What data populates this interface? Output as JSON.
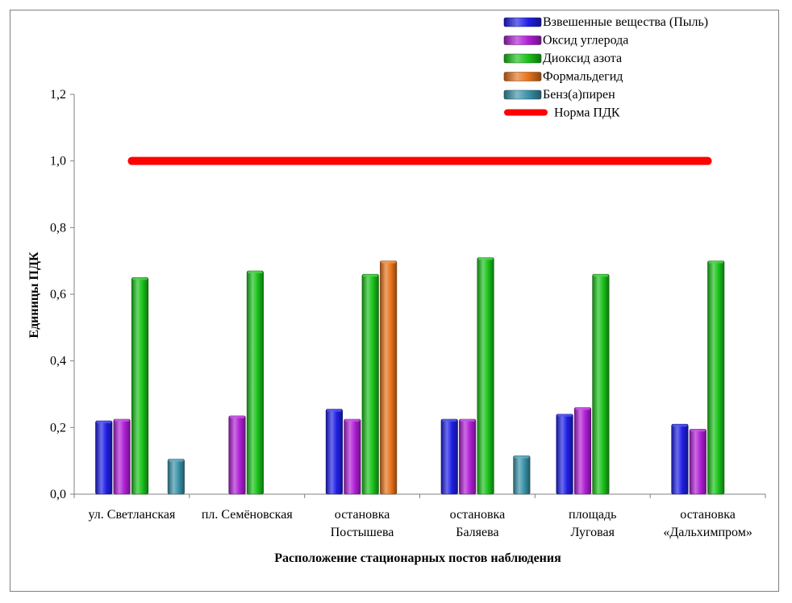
{
  "chart_data": {
    "type": "bar",
    "title": "",
    "xlabel": "Расположение стационарных постов наблюдения",
    "ylabel": "Единицы ПДК",
    "ylim": [
      0,
      1.2
    ],
    "yticks": [
      "0,0",
      "0,2",
      "0,4",
      "0,6",
      "0,8",
      "1,0",
      "1,2"
    ],
    "grid": false,
    "legend_position": "top-right",
    "categories": [
      [
        "ул. Светланская"
      ],
      [
        "пл. Семёновская"
      ],
      [
        "остановка",
        "Постышева"
      ],
      [
        "остановка",
        "Баляева"
      ],
      [
        "площадь",
        "Луговая"
      ],
      [
        "остановка",
        "«Дальхимпром»"
      ]
    ],
    "series": [
      {
        "name": "Взвешенные вещества (Пыль)",
        "color": "#1f1fe6",
        "values": [
          0.22,
          null,
          0.255,
          0.225,
          0.24,
          0.21
        ]
      },
      {
        "name": "Оксид углерода",
        "color": "#b01fd6",
        "values": [
          0.225,
          0.235,
          0.225,
          0.225,
          0.26,
          0.195
        ]
      },
      {
        "name": "Диоксид азота",
        "color": "#19c219",
        "values": [
          0.65,
          0.67,
          0.66,
          0.71,
          0.66,
          0.7
        ]
      },
      {
        "name": "Формальдегид",
        "color": "#e8731a",
        "values": [
          null,
          null,
          0.7,
          null,
          null,
          null
        ]
      },
      {
        "name": "Бенз(а)пирен",
        "color": "#3a93aa",
        "values": [
          0.105,
          null,
          null,
          0.115,
          null,
          null
        ]
      }
    ],
    "reference_line": {
      "name": "Норма ПДК",
      "value": 1.0,
      "color": "#ff0000"
    }
  }
}
